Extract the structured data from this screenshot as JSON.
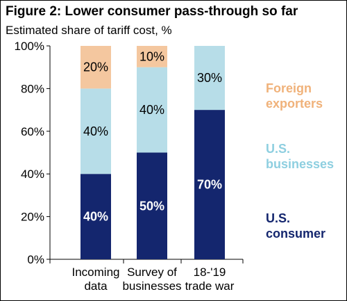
{
  "chart_data": {
    "type": "bar",
    "stacked": true,
    "title": "Figure 2: Lower consumer pass-through so far",
    "subtitle": "Estimated share of tariff cost, %",
    "categories": [
      [
        "Incoming",
        "data"
      ],
      [
        "Survey of",
        "businesses"
      ],
      [
        "18-'19",
        "trade war"
      ]
    ],
    "series": [
      {
        "name": "U.S.\nconsumer",
        "values": [
          40,
          50,
          70
        ],
        "labels": [
          "40%",
          "50%",
          "70%"
        ],
        "color": "#14266e",
        "label_color": "#ffffff"
      },
      {
        "name": "U.S.\nbusinesses",
        "values": [
          40,
          40,
          30
        ],
        "labels": [
          "40%",
          "40%",
          "30%"
        ],
        "color": "#b7dde8",
        "label_color": "#000000"
      },
      {
        "name": "Foreign\nexporters",
        "values": [
          20,
          10,
          0
        ],
        "labels": [
          "20%",
          "10%",
          ""
        ],
        "color": "#f4c79f",
        "label_color": "#000000"
      }
    ],
    "legend_colors": [
      "#14266e",
      "#8ecfe0",
      "#f0b27a"
    ],
    "yticks": [
      "0%",
      "20%",
      "40%",
      "60%",
      "80%",
      "100%"
    ],
    "ylim": [
      0,
      100
    ],
    "grid": false,
    "legend_position": "right"
  }
}
